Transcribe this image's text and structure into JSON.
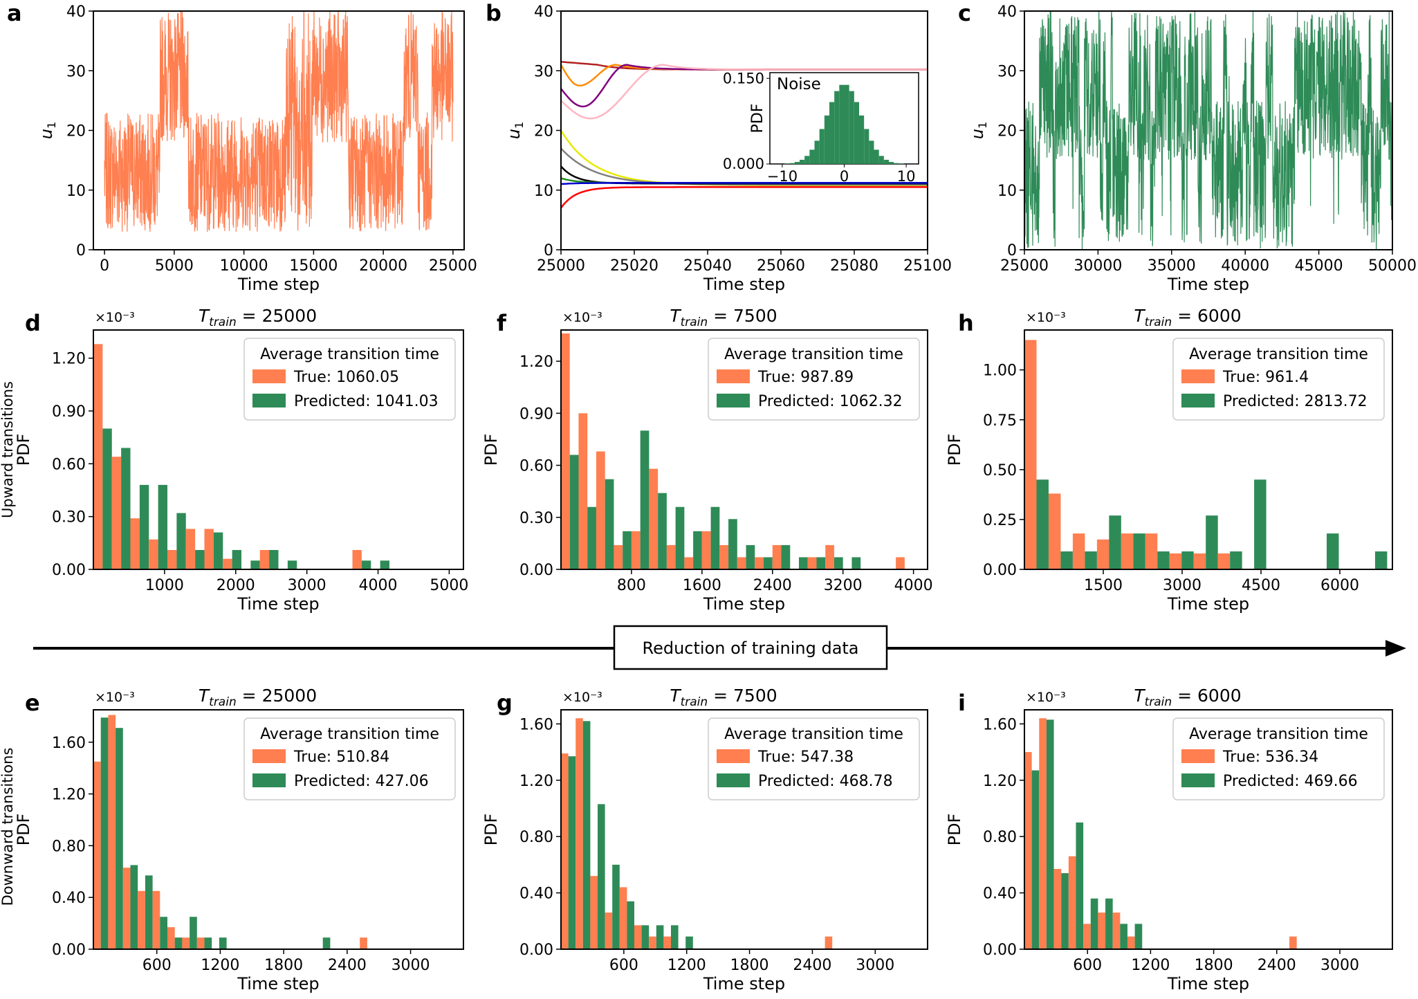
{
  "colors": {
    "true": "#ff7f50",
    "predicted": "#2e8b57",
    "trace_a": "#ff7f50",
    "trace_c": "#2e8b57"
  },
  "arrow_label": "Reduction of training data",
  "row_labels": {
    "upward": "Upward transitions",
    "downward": "Downward transitions"
  },
  "chart_data": [
    {
      "id": "a",
      "type": "line",
      "panel_label": "a",
      "xlabel": "Time step",
      "ylabel": "u1",
      "xlim": [
        -800,
        25800
      ],
      "ylim": [
        0,
        40
      ],
      "xticks": [
        0,
        5000,
        10000,
        15000,
        20000,
        25000
      ],
      "yticks": [
        0,
        10,
        20,
        30,
        40
      ],
      "series_color": "#ff7f50",
      "regimes": [
        {
          "start": 0,
          "end": 4000,
          "level": "low"
        },
        {
          "start": 4000,
          "end": 6000,
          "level": "high"
        },
        {
          "start": 6000,
          "end": 13000,
          "level": "low"
        },
        {
          "start": 13000,
          "end": 15000,
          "level": "mixed"
        },
        {
          "start": 15000,
          "end": 17500,
          "level": "high"
        },
        {
          "start": 17500,
          "end": 21500,
          "level": "low"
        },
        {
          "start": 21500,
          "end": 22500,
          "level": "high"
        },
        {
          "start": 22500,
          "end": 23500,
          "level": "low"
        },
        {
          "start": 23500,
          "end": 25000,
          "level": "high"
        }
      ],
      "low_range": [
        3,
        23
      ],
      "high_range": [
        18,
        40
      ]
    },
    {
      "id": "b",
      "type": "line",
      "panel_label": "b",
      "xlabel": "Time step",
      "ylabel": "u1",
      "xlim": [
        25000,
        25100
      ],
      "ylim": [
        0,
        40
      ],
      "xticks": [
        25000,
        25020,
        25040,
        25060,
        25080,
        25100
      ],
      "yticks": [
        0,
        10,
        20,
        30,
        40
      ],
      "series": [
        {
          "name": "brown",
          "color": "#b22222",
          "start": 31.5,
          "end": 30.2,
          "peak_t": 25010,
          "peak": 31
        },
        {
          "name": "orange",
          "color": "#ff8c00",
          "start": 31,
          "end": 30.2,
          "dip_t": 25005,
          "dip": 27.5,
          "peak_t": 25015,
          "peak": 31
        },
        {
          "name": "purple",
          "color": "#800080",
          "start": 27,
          "end": 30.2,
          "dip_t": 25006,
          "dip": 24,
          "peak_t": 25018,
          "peak": 31
        },
        {
          "name": "pink",
          "color": "#ffb6c1",
          "start": 25,
          "end": 30.2,
          "dip_t": 25008,
          "dip": 22,
          "peak_t": 25028,
          "peak": 31
        },
        {
          "name": "yellow",
          "color": "#e8e800",
          "start": 20,
          "end": 10.8
        },
        {
          "name": "gray",
          "color": "#808080",
          "start": 17,
          "end": 10.9
        },
        {
          "name": "black",
          "color": "#000000",
          "start": 14,
          "end": 11.1
        },
        {
          "name": "green",
          "color": "#228b22",
          "start": 12,
          "end": 11.2
        },
        {
          "name": "blue",
          "color": "#0000cd",
          "start": 11,
          "end": 11.2
        },
        {
          "name": "red",
          "color": "#ff0000",
          "start": 7,
          "end": 10.5
        }
      ],
      "inset": {
        "type": "histogram",
        "title": "Noise",
        "ylabel": "PDF",
        "xlim": [
          -12,
          12
        ],
        "ylim": [
          0,
          0.16
        ],
        "xticks": [
          -10,
          0,
          10
        ],
        "yticks": [
          "0.000",
          "0.150"
        ],
        "mean": 0,
        "std": 2.8,
        "peak": 0.14,
        "color": "#2e8b57"
      }
    },
    {
      "id": "c",
      "type": "line",
      "panel_label": "c",
      "xlabel": "Time step",
      "ylabel": "u1",
      "xlim": [
        25000,
        50000
      ],
      "ylim": [
        0,
        40
      ],
      "xticks": [
        25000,
        30000,
        35000,
        40000,
        45000,
        50000
      ],
      "yticks": [
        0,
        10,
        20,
        30,
        40
      ],
      "series_color": "#2e8b57",
      "low_range": [
        0,
        25
      ],
      "high_range": [
        15,
        40
      ]
    },
    {
      "id": "d",
      "type": "bar",
      "panel_label": "d",
      "title_prefix": "T",
      "title_sub": "train",
      "title_value": "= 25000",
      "multiplier": "×10⁻³",
      "xlabel": "Time step",
      "ylabel": "PDF",
      "row_label": "Upward transitions",
      "xlim": [
        0,
        5200
      ],
      "ylim": [
        0,
        1.36
      ],
      "xticks": [
        1000,
        2000,
        3000,
        4000,
        5000
      ],
      "yticks": [
        "0.00",
        "0.30",
        "0.60",
        "0.90",
        "1.20"
      ],
      "ytick_values": [
        0,
        0.3,
        0.6,
        0.9,
        1.2
      ],
      "bin_width": 260,
      "true": [
        1.28,
        0.64,
        0.29,
        0.17,
        0.11,
        0.23,
        0.23,
        0.06,
        0,
        0.11,
        0,
        0,
        0,
        0,
        0.11,
        0,
        0,
        0,
        0,
        0
      ],
      "predicted": [
        0.8,
        0.69,
        0.48,
        0.48,
        0.32,
        0.11,
        0.21,
        0.11,
        0.05,
        0.11,
        0.05,
        0,
        0,
        0,
        0.05,
        0.05,
        0,
        0,
        0,
        0
      ],
      "legend": {
        "title": "Average transition time",
        "true_label": "True: 1060.05",
        "predicted_label": "Predicted: 1041.03"
      }
    },
    {
      "id": "f",
      "type": "bar",
      "panel_label": "f",
      "title_prefix": "T",
      "title_sub": "train",
      "title_value": "= 7500",
      "multiplier": "×10⁻³",
      "xlabel": "Time step",
      "ylabel": "PDF",
      "xlim": [
        0,
        4160
      ],
      "ylim": [
        0,
        1.38
      ],
      "xticks": [
        800,
        1600,
        2400,
        3200,
        4000
      ],
      "yticks": [
        "0.00",
        "0.30",
        "0.60",
        "0.90",
        "1.20"
      ],
      "ytick_values": [
        0,
        0.3,
        0.6,
        0.9,
        1.2
      ],
      "bin_width": 200,
      "true": [
        1.36,
        0.9,
        0.68,
        0.14,
        0.22,
        0.58,
        0.14,
        0.07,
        0.22,
        0.14,
        0.07,
        0.07,
        0.14,
        0,
        0.07,
        0.14,
        0,
        0,
        0,
        0.07
      ],
      "predicted": [
        0.66,
        0.36,
        0.52,
        0.22,
        0.8,
        0.44,
        0.36,
        0.22,
        0.36,
        0.29,
        0.14,
        0.07,
        0.14,
        0.07,
        0.07,
        0.07,
        0.07,
        0,
        0,
        0
      ],
      "legend": {
        "title": "Average transition time",
        "true_label": "True: 987.89",
        "predicted_label": "Predicted: 1062.32"
      }
    },
    {
      "id": "h",
      "type": "bar",
      "panel_label": "h",
      "title_prefix": "T",
      "title_sub": "train",
      "title_value": "= 6000",
      "multiplier": "×10⁻³",
      "xlabel": "Time step",
      "ylabel": "PDF",
      "xlim": [
        0,
        7000
      ],
      "ylim": [
        0,
        1.2
      ],
      "xticks": [
        1500,
        3000,
        4500,
        6000
      ],
      "yticks": [
        "0.00",
        "0.25",
        "0.50",
        "0.75",
        "1.00"
      ],
      "ytick_values": [
        0,
        0.25,
        0.5,
        0.75,
        1.0
      ],
      "bin_width": 460,
      "true": [
        1.15,
        0.38,
        0.18,
        0.15,
        0.18,
        0.18,
        0.08,
        0.08,
        0.08,
        0,
        0,
        0,
        0,
        0,
        0
      ],
      "predicted": [
        0.45,
        0.09,
        0.09,
        0.27,
        0.18,
        0.09,
        0.09,
        0.27,
        0.09,
        0.45,
        0,
        0,
        0.18,
        0,
        0.09
      ],
      "legend": {
        "title": "Average transition time",
        "true_label": "True: 961.4",
        "predicted_label": "Predicted: 2813.72"
      }
    },
    {
      "id": "e",
      "type": "bar",
      "panel_label": "e",
      "title_prefix": "T",
      "title_sub": "train",
      "title_value": "= 25000",
      "multiplier": "×10⁻³",
      "xlabel": "Time step",
      "ylabel": "PDF",
      "row_label": "Downward transitions",
      "xlim": [
        0,
        3500
      ],
      "ylim": [
        0,
        1.85
      ],
      "xticks": [
        600,
        1200,
        1800,
        2400,
        3000
      ],
      "yticks": [
        "0.00",
        "0.40",
        "0.80",
        "1.20",
        "1.60"
      ],
      "ytick_values": [
        0,
        0.4,
        0.8,
        1.2,
        1.6
      ],
      "bin_width": 140,
      "true": [
        1.45,
        1.81,
        0.63,
        0.45,
        0.45,
        0.17,
        0.09,
        0.09,
        0,
        0,
        0,
        0,
        0,
        0,
        0,
        0,
        0,
        0,
        0.09,
        0
      ],
      "predicted": [
        1.79,
        1.71,
        0.65,
        0.57,
        0.25,
        0.09,
        0.25,
        0.09,
        0.09,
        0,
        0,
        0,
        0,
        0,
        0,
        0.09,
        0,
        0,
        0,
        0
      ],
      "legend": {
        "title": "Average transition time",
        "true_label": "True: 510.84",
        "predicted_label": "Predicted: 427.06"
      }
    },
    {
      "id": "g",
      "type": "bar",
      "panel_label": "g",
      "title_prefix": "T",
      "title_sub": "train",
      "title_value": "= 7500",
      "multiplier": "×10⁻³",
      "xlabel": "Time step",
      "ylabel": "PDF",
      "xlim": [
        0,
        3500
      ],
      "ylim": [
        0,
        1.7
      ],
      "xticks": [
        600,
        1200,
        1800,
        2400,
        3000
      ],
      "yticks": [
        "0.00",
        "0.40",
        "0.80",
        "1.20",
        "1.60"
      ],
      "ytick_values": [
        0,
        0.4,
        0.8,
        1.2,
        1.6
      ],
      "bin_width": 140,
      "true": [
        1.39,
        1.64,
        0.52,
        0.26,
        0.44,
        0.17,
        0.09,
        0.09,
        0,
        0,
        0,
        0,
        0,
        0,
        0,
        0,
        0,
        0,
        0.09,
        0
      ],
      "predicted": [
        1.37,
        1.62,
        1.03,
        0.6,
        0.34,
        0.17,
        0.17,
        0.17,
        0.09,
        0,
        0,
        0,
        0,
        0,
        0,
        0,
        0,
        0,
        0,
        0
      ],
      "legend": {
        "title": "Average transition time",
        "true_label": "True: 547.38",
        "predicted_label": "Predicted: 468.78"
      }
    },
    {
      "id": "i",
      "type": "bar",
      "panel_label": "i",
      "title_prefix": "T",
      "title_sub": "train",
      "title_value": "= 6000",
      "multiplier": "×10⁻³",
      "xlabel": "Time step",
      "ylabel": "PDF",
      "xlim": [
        0,
        3500
      ],
      "ylim": [
        0,
        1.7
      ],
      "xticks": [
        600,
        1200,
        1800,
        2400,
        3000
      ],
      "yticks": [
        "0.00",
        "0.40",
        "0.80",
        "1.20",
        "1.60"
      ],
      "ytick_values": [
        0,
        0.4,
        0.8,
        1.2,
        1.6
      ],
      "bin_width": 140,
      "true": [
        1.4,
        1.64,
        0.57,
        0.66,
        0.18,
        0.26,
        0.26,
        0.09,
        0,
        0,
        0,
        0,
        0,
        0,
        0,
        0,
        0,
        0,
        0.09,
        0
      ],
      "predicted": [
        1.27,
        1.63,
        0.54,
        0.9,
        0.36,
        0.36,
        0.18,
        0.18,
        0,
        0,
        0,
        0,
        0,
        0,
        0,
        0,
        0,
        0,
        0,
        0
      ],
      "legend": {
        "title": "Average transition time",
        "true_label": "True: 536.34",
        "predicted_label": "Predicted: 469.66"
      }
    }
  ]
}
